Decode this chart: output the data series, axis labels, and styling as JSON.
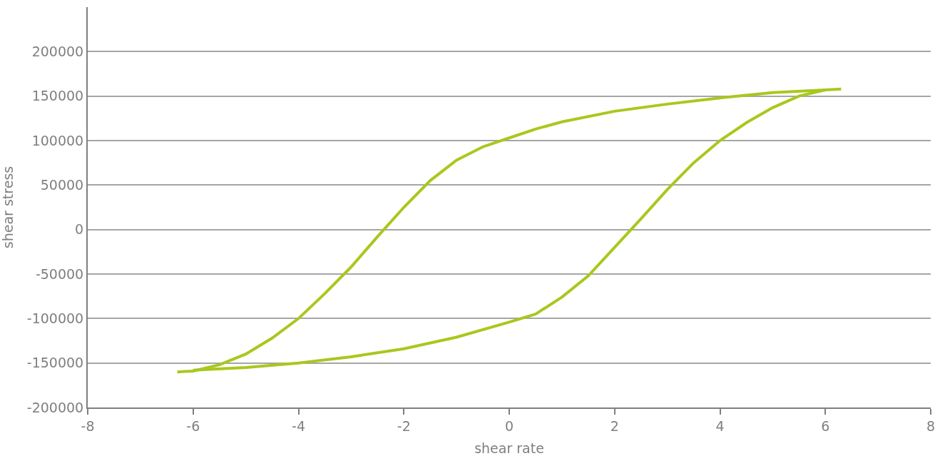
{
  "chart_data": {
    "type": "line",
    "xlabel": "shear rate",
    "ylabel": "shear stress",
    "xlim": [
      -8,
      8
    ],
    "xticks": [
      -8,
      -6,
      -4,
      -2,
      0,
      2,
      4,
      6,
      8
    ],
    "ylim": [
      -200000,
      250000
    ],
    "yticks": [
      -200000,
      -150000,
      -100000,
      -50000,
      0,
      50000,
      100000,
      150000,
      200000
    ],
    "grid": "y",
    "legend": false,
    "marker": "none",
    "line_style": "solid",
    "series": [
      {
        "color": "#a8c81e",
        "x": [
          -6.3,
          -6,
          -5.5,
          -5,
          -4.5,
          -4,
          -3.5,
          -3,
          -2.5,
          -2,
          -1.5,
          -1,
          -0.5,
          0,
          0.5,
          1,
          2,
          3,
          4,
          5,
          6,
          6.3
        ],
        "values": [
          -160000,
          -159000,
          -152000,
          -140000,
          -122000,
          -100000,
          -72000,
          -42000,
          -8000,
          25000,
          55000,
          78000,
          93000,
          103000,
          113000,
          121000,
          133000,
          141000,
          148000,
          154000,
          157000,
          158000
        ]
      },
      {
        "color": "#a8c81e",
        "x": [
          -6,
          -5,
          -4,
          -3,
          -2,
          -1,
          0,
          0.5,
          1,
          1.5,
          2,
          2.5,
          3,
          3.5,
          4,
          4.5,
          5,
          5.5,
          6
        ],
        "values": [
          -158000,
          -155000,
          -150000,
          -143000,
          -134000,
          -121000,
          -104000,
          -95000,
          -76000,
          -52000,
          -20000,
          12000,
          45000,
          75000,
          100000,
          120000,
          137000,
          150000,
          157000
        ]
      }
    ]
  }
}
